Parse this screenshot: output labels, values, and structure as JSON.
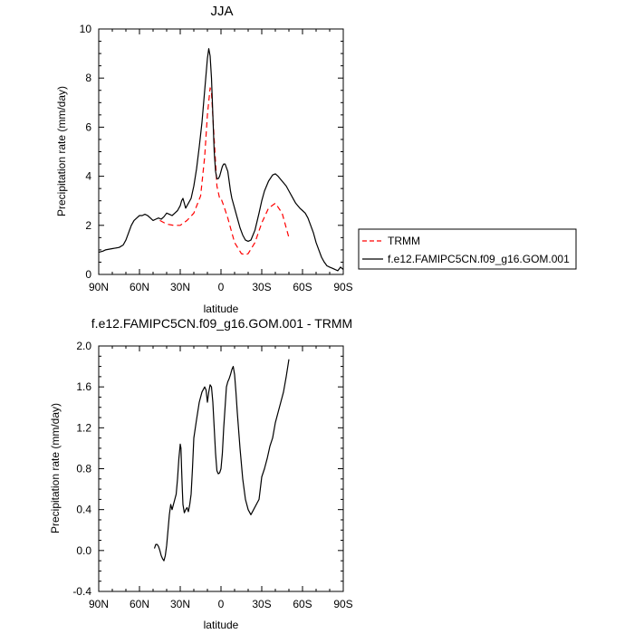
{
  "chart_data": [
    {
      "type": "line",
      "title": "JJA",
      "xlabel": "latitude",
      "ylabel": "Precipitation rate (mm/day)",
      "xlim": [
        90,
        -90
      ],
      "ylim": [
        0,
        10
      ],
      "x_tick_values": [
        90,
        60,
        30,
        0,
        -30,
        -60,
        -90
      ],
      "x_tick_labels": [
        "90N",
        "60N",
        "30N",
        "0",
        "30S",
        "60S",
        "90S"
      ],
      "y_tick_values": [
        0,
        2,
        4,
        6,
        8,
        10
      ],
      "y_tick_labels": [
        "0",
        "2",
        "4",
        "6",
        "8",
        "10"
      ],
      "legend_position": "outside-right",
      "series": [
        {
          "name": "TRMM",
          "color": "#ff0000",
          "dash": "dashed",
          "x": [
            45,
            40,
            35,
            30,
            25,
            20,
            15,
            12,
            10,
            8,
            7,
            5,
            3,
            1,
            0,
            -2,
            -5,
            -10,
            -15,
            -18,
            -20,
            -25,
            -30,
            -35,
            -40,
            -45,
            -50
          ],
          "y": [
            2.2,
            2.05,
            2.0,
            2.0,
            2.2,
            2.5,
            3.2,
            4.8,
            6.5,
            7.6,
            7.4,
            5.5,
            3.6,
            3.1,
            3.1,
            2.8,
            2.3,
            1.3,
            0.85,
            0.8,
            0.85,
            1.3,
            2.1,
            2.7,
            2.9,
            2.5,
            1.5
          ]
        },
        {
          "name": "f.e12.FAMIPC5CN.f09_g16.GOM.001",
          "color": "#000000",
          "dash": "solid",
          "x": [
            90,
            87,
            85,
            80,
            75,
            72,
            70,
            68,
            66,
            64,
            62,
            60,
            58,
            56,
            54,
            52,
            50,
            48,
            46,
            44,
            42,
            40,
            38,
            36,
            34,
            32,
            30,
            29,
            28,
            27,
            26,
            24,
            22,
            20,
            18,
            16,
            14,
            12,
            10,
            9,
            8,
            7,
            6,
            5,
            4,
            3,
            2,
            1,
            0,
            -1,
            -2,
            -3,
            -5,
            -6,
            -7,
            -8,
            -9,
            -10,
            -12,
            -14,
            -16,
            -18,
            -20,
            -22,
            -25,
            -28,
            -30,
            -32,
            -35,
            -38,
            -40,
            -42,
            -45,
            -48,
            -50,
            -52,
            -55,
            -58,
            -60,
            -62,
            -64,
            -66,
            -68,
            -70,
            -72,
            -74,
            -76,
            -78,
            -80,
            -82,
            -84,
            -86,
            -88,
            -90
          ],
          "y": [
            0.9,
            0.95,
            1.0,
            1.05,
            1.1,
            1.2,
            1.4,
            1.7,
            2.0,
            2.2,
            2.3,
            2.4,
            2.4,
            2.45,
            2.4,
            2.3,
            2.2,
            2.25,
            2.3,
            2.25,
            2.35,
            2.5,
            2.45,
            2.4,
            2.5,
            2.6,
            2.8,
            3.0,
            3.1,
            2.9,
            2.7,
            2.9,
            3.1,
            3.6,
            4.3,
            5.2,
            6.2,
            7.5,
            8.8,
            9.2,
            8.9,
            8.0,
            6.5,
            5.0,
            4.2,
            3.9,
            3.9,
            4.0,
            4.2,
            4.4,
            4.5,
            4.5,
            4.2,
            3.8,
            3.4,
            3.1,
            2.9,
            2.7,
            2.3,
            1.9,
            1.6,
            1.4,
            1.35,
            1.4,
            1.8,
            2.5,
            3.0,
            3.4,
            3.8,
            4.05,
            4.1,
            4.0,
            3.8,
            3.6,
            3.4,
            3.2,
            2.9,
            2.7,
            2.6,
            2.5,
            2.3,
            2.0,
            1.7,
            1.3,
            1.0,
            0.7,
            0.5,
            0.35,
            0.3,
            0.25,
            0.2,
            0.15,
            0.3,
            0.2
          ]
        }
      ]
    },
    {
      "type": "line",
      "title": "f.e12.FAMIPC5CN.f09_g16.GOM.001 - TRMM",
      "xlabel": "latitude",
      "ylabel": "Precipitation rate (mm/day)",
      "xlim": [
        90,
        -90
      ],
      "ylim": [
        -0.4,
        2.0
      ],
      "x_tick_values": [
        90,
        60,
        30,
        0,
        -30,
        -60,
        -90
      ],
      "x_tick_labels": [
        "90N",
        "60N",
        "30N",
        "0",
        "30S",
        "60S",
        "90S"
      ],
      "y_tick_values": [
        -0.4,
        0.0,
        0.4,
        0.8,
        1.2,
        1.6,
        2.0
      ],
      "y_tick_labels": [
        "-0.4",
        "0.0",
        "0.4",
        "0.8",
        "1.2",
        "1.6",
        "2.0"
      ],
      "series": [
        {
          "color": "#000000",
          "dash": "solid",
          "x": [
            49,
            48,
            47,
            46,
            45,
            44,
            43,
            42,
            41,
            40,
            39,
            38,
            37,
            36,
            35,
            34,
            33,
            32,
            31,
            30,
            29.5,
            29,
            28.5,
            28,
            27,
            26,
            25,
            24,
            23,
            22,
            21,
            20,
            18,
            16,
            14,
            12,
            11,
            10,
            9,
            8,
            7,
            6,
            5,
            4,
            3,
            2,
            1,
            0,
            -1,
            -2,
            -3,
            -4,
            -5,
            -6,
            -7,
            -8,
            -9,
            -10,
            -11,
            -12,
            -14,
            -16,
            -18,
            -20,
            -22,
            -24,
            -26,
            -28,
            -30,
            -32,
            -34,
            -36,
            -38,
            -40,
            -42,
            -44,
            -46,
            -48,
            -50
          ],
          "y": [
            0.02,
            0.06,
            0.06,
            0.04,
            0.0,
            -0.05,
            -0.08,
            -0.1,
            -0.05,
            0.05,
            0.2,
            0.35,
            0.45,
            0.4,
            0.45,
            0.5,
            0.55,
            0.7,
            0.9,
            1.04,
            1.0,
            0.8,
            0.6,
            0.45,
            0.37,
            0.4,
            0.42,
            0.38,
            0.45,
            0.55,
            0.8,
            1.1,
            1.28,
            1.45,
            1.55,
            1.6,
            1.57,
            1.45,
            1.55,
            1.62,
            1.6,
            1.45,
            1.2,
            0.95,
            0.78,
            0.75,
            0.76,
            0.8,
            0.95,
            1.2,
            1.4,
            1.6,
            1.65,
            1.68,
            1.72,
            1.77,
            1.8,
            1.72,
            1.55,
            1.35,
            1.0,
            0.7,
            0.5,
            0.4,
            0.35,
            0.4,
            0.45,
            0.5,
            0.72,
            0.8,
            0.9,
            1.02,
            1.1,
            1.25,
            1.35,
            1.45,
            1.55,
            1.7,
            1.87
          ]
        }
      ]
    }
  ]
}
